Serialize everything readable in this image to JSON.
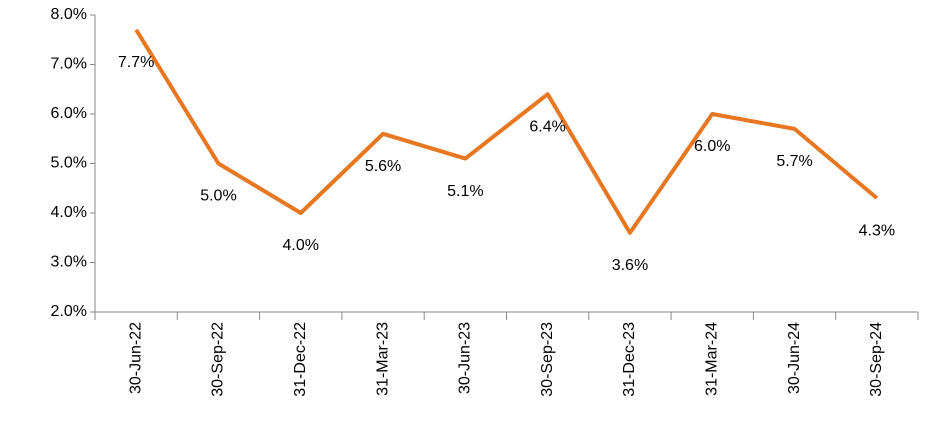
{
  "chart_data": {
    "type": "line",
    "categories": [
      "30-Jun-22",
      "30-Sep-22",
      "31-Dec-22",
      "31-Mar-23",
      "30-Jun-23",
      "30-Sep-23",
      "31-Dec-23",
      "31-Mar-24",
      "30-Jun-24",
      "30-Sep-24"
    ],
    "values": [
      7.7,
      5.0,
      4.0,
      5.6,
      5.1,
      6.4,
      3.6,
      6.0,
      5.7,
      4.3
    ],
    "value_labels": [
      "7.7%",
      "5.0%",
      "4.0%",
      "5.6%",
      "5.1%",
      "6.4%",
      "3.6%",
      "6.0%",
      "5.7%",
      "4.3%"
    ],
    "color": "#e87722",
    "ylim": [
      2,
      8
    ],
    "yticks": [
      {
        "value": 2,
        "label": "2.0%"
      },
      {
        "value": 3,
        "label": "3.0%"
      },
      {
        "value": 4,
        "label": "4.0%"
      },
      {
        "value": 5,
        "label": "5.0%"
      },
      {
        "value": 6,
        "label": "6.0%"
      },
      {
        "value": 7,
        "label": "7.0%"
      },
      {
        "value": 8,
        "label": "8.0%"
      }
    ],
    "grid": false
  }
}
